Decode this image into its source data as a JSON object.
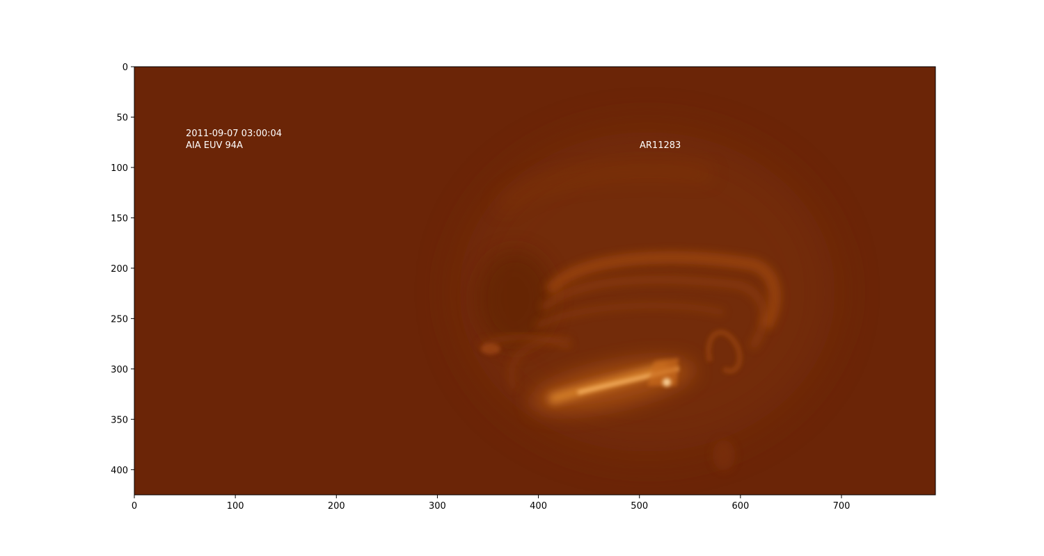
{
  "image": {
    "colormap": "AIA 94A (dark orange)",
    "background_color": "#6b2507",
    "x_range": [
      0,
      793
    ],
    "y_range": [
      0,
      425
    ],
    "y_inverted": true
  },
  "axes": {
    "x_ticks": [
      0,
      100,
      200,
      300,
      400,
      500,
      600,
      700
    ],
    "y_ticks": [
      0,
      50,
      100,
      150,
      200,
      250,
      300,
      350,
      400
    ]
  },
  "annotations": {
    "timestamp": "2011-09-07 03:00:04",
    "instrument": "AIA EUV 94A",
    "region": "AR11283"
  }
}
